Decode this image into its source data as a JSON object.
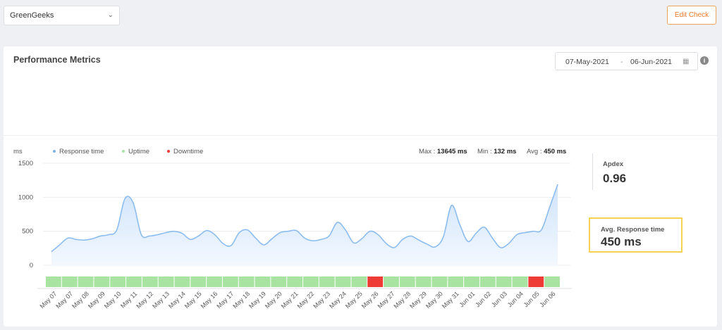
{
  "topbar": {
    "site_select_value": "GreenGeeks",
    "edit_button_label": "Edit Check"
  },
  "card": {
    "title": "Performance Metrics",
    "date_from": "07-May-2021",
    "date_sep": "-",
    "date_to": "06-Jun-2021",
    "info_icon": "i"
  },
  "legend": {
    "unit": "ms",
    "items": [
      {
        "label": "Response time",
        "color": "#7fb2e8"
      },
      {
        "label": "Uptime",
        "color": "#a8e3a2"
      },
      {
        "label": "Downtime",
        "color": "#ee3b36"
      }
    ]
  },
  "stats": {
    "max_label": "Max :",
    "max_value": "13645 ms",
    "min_label": "Min :",
    "min_value": "132 ms",
    "avg_label": "Avg :",
    "avg_value": "450 ms"
  },
  "apdex": {
    "label": "Apdex",
    "value": "0.96"
  },
  "avg_response": {
    "label": "Avg. Response time",
    "value": "450 ms",
    "highlight_color": "#f5d251"
  },
  "colors": {
    "line": "#8cbdf0",
    "area_top": "#cfe3fb",
    "area_bottom": "#f3f8fe",
    "uptime": "#a8e3a2",
    "downtime": "#ee3b36",
    "grid": "#e9ecef"
  },
  "chart_data": {
    "type": "area",
    "ylabel": "ms",
    "yticks": [
      0,
      500,
      1000,
      1500
    ],
    "ylim": [
      0,
      1500
    ],
    "categories": [
      "May 07",
      "May 07",
      "May 08",
      "May 09",
      "May 10",
      "May 11",
      "May 12",
      "May 13",
      "May 14",
      "May 15",
      "May 16",
      "May 17",
      "May 18",
      "May 19",
      "May 20",
      "May 21",
      "May 22",
      "May 23",
      "May 24",
      "May 25",
      "May 26",
      "May 27",
      "May 28",
      "May 29",
      "May 30",
      "May 31",
      "Jun 01",
      "Jun 02",
      "Jun 03",
      "Jun 04",
      "Jun 05",
      "Jun 06"
    ],
    "series": [
      {
        "name": "Response time",
        "x": [
          0,
          0.5,
          1,
          1.5,
          2,
          2.5,
          3,
          3.5,
          4,
          4.5,
          5,
          5.5,
          6,
          6.5,
          7,
          7.5,
          8,
          8.5,
          9,
          9.5,
          10,
          10.5,
          11,
          11.5,
          12,
          12.5,
          13,
          13.5,
          14,
          14.5,
          15,
          15.5,
          16,
          16.5,
          17,
          17.5,
          18,
          18.5,
          19,
          19.5,
          20,
          20.5,
          21,
          21.5,
          22,
          22.5,
          23,
          23.5,
          24,
          24.5,
          25,
          25.5,
          26,
          26.5,
          27,
          27.5,
          28,
          28.5,
          29,
          29.5,
          30,
          30.5,
          31
        ],
        "values": [
          200,
          300,
          400,
          380,
          370,
          390,
          430,
          450,
          520,
          980,
          920,
          450,
          430,
          450,
          480,
          500,
          470,
          380,
          430,
          510,
          450,
          320,
          290,
          480,
          520,
          400,
          300,
          390,
          480,
          500,
          510,
          400,
          360,
          380,
          430,
          630,
          520,
          330,
          390,
          500,
          450,
          320,
          260,
          380,
          430,
          370,
          310,
          270,
          420,
          880,
          600,
          350,
          470,
          560,
          400,
          260,
          320,
          450,
          480,
          500,
          520,
          850,
          1190
        ]
      }
    ],
    "status_bar": [
      "up",
      "up",
      "up",
      "up",
      "up",
      "up",
      "up",
      "up",
      "up",
      "up",
      "up",
      "up",
      "up",
      "up",
      "up",
      "up",
      "up",
      "up",
      "up",
      "up",
      "down",
      "up",
      "up",
      "up",
      "up",
      "up",
      "up",
      "up",
      "up",
      "up",
      "down",
      "up"
    ]
  }
}
